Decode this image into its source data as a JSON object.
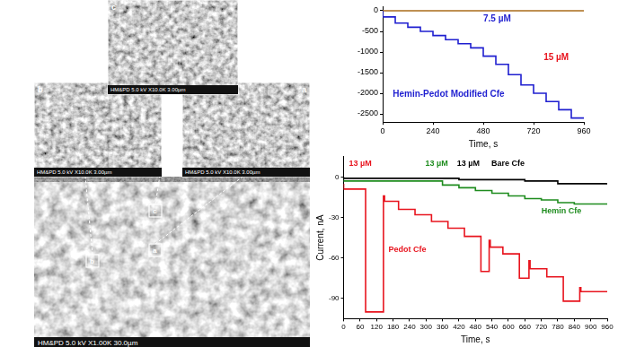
{
  "chart_data": [
    {
      "type": "line",
      "xlabel": "Time, s",
      "xlim": [
        0,
        960
      ],
      "xticks": [
        0,
        240,
        480,
        720,
        960
      ],
      "ylim": [
        -2700,
        100
      ],
      "yticks": [
        -2500,
        -2000,
        -1500,
        -1000,
        -500,
        0
      ],
      "grid": false,
      "line_style": "stepped",
      "annotations": [
        {
          "text": "7.5 µM",
          "color": "#1f1fd0"
        },
        {
          "text": "15 µM",
          "color": "#e8141e"
        }
      ],
      "series": [
        {
          "name": "Hemin-Pedot Modified Cfe",
          "color": "#1f1fd0",
          "x": [
            0,
            60,
            120,
            180,
            240,
            300,
            360,
            420,
            480,
            540,
            600,
            660,
            720,
            780,
            840,
            900,
            940,
            960
          ],
          "values": [
            0,
            -150,
            -300,
            -400,
            -500,
            -600,
            -700,
            -800,
            -900,
            -1100,
            -1300,
            -1550,
            -1800,
            -2000,
            -2200,
            -2400,
            -2600,
            -2600
          ]
        },
        {
          "color": "#a86b1a",
          "x": [
            0,
            960
          ],
          "values": [
            0,
            0
          ]
        }
      ]
    },
    {
      "type": "line",
      "xlabel": "Time, s",
      "ylabel": "Current, nA",
      "xlim": [
        0,
        960
      ],
      "xticks": [
        0,
        60,
        120,
        180,
        240,
        300,
        360,
        420,
        480,
        540,
        600,
        660,
        720,
        780,
        840,
        900,
        960
      ],
      "ylim": [
        -105,
        15
      ],
      "yticks": [
        -90,
        -60,
        -30,
        0
      ],
      "grid": false,
      "line_style": "stepped",
      "annotations": [
        {
          "text": "13 µM",
          "color": "#e8141e"
        },
        {
          "text": "13 µM",
          "color": "#1e8c1e"
        },
        {
          "text": "13 µM",
          "color": "#000000"
        }
      ],
      "series": [
        {
          "name": "Pedot Cfe",
          "color": "#e8141e",
          "x": [
            0,
            80,
            145,
            149,
            200,
            260,
            320,
            380,
            440,
            500,
            530,
            534,
            580,
            640,
            675,
            679,
            740,
            800,
            860,
            864,
            960
          ],
          "values": [
            -5,
            -9,
            -100,
            -14,
            -18,
            -24,
            -28,
            -33,
            -38,
            -44,
            -70,
            -47,
            -52,
            -57,
            -75,
            -62,
            -68,
            -74,
            -92,
            -82,
            -85
          ]
        },
        {
          "name": "Hemin Cfe",
          "color": "#1e8c1e",
          "x": [
            0,
            360,
            420,
            480,
            540,
            600,
            660,
            720,
            780,
            840,
            900,
            960
          ],
          "values": [
            -2,
            -3,
            -6,
            -8,
            -10,
            -12,
            -14,
            -16,
            -17,
            -19,
            -20,
            -20
          ]
        },
        {
          "name": "Bare Cfe",
          "color": "#000000",
          "x": [
            0,
            420,
            540,
            660,
            780,
            900,
            960
          ],
          "values": [
            0,
            -1,
            -2,
            -2,
            -3,
            -5,
            -5
          ]
        }
      ]
    }
  ],
  "sem_images": {
    "details": [
      {
        "letter": "c",
        "caption": "HM&PD 5.0 kV X10.0K 3.00µm"
      },
      {
        "letter": "b",
        "caption": "HM&PD 5.0 kV X10.0K 3.00µm"
      },
      {
        "letter": "a",
        "caption": "HM&PD 5.0 kV X10.0K 3.00µm"
      }
    ],
    "overview": {
      "caption": "HM&PD 5.0 kV X1.00K 30.0µm",
      "markers": [
        "b",
        "c",
        "a"
      ]
    }
  }
}
